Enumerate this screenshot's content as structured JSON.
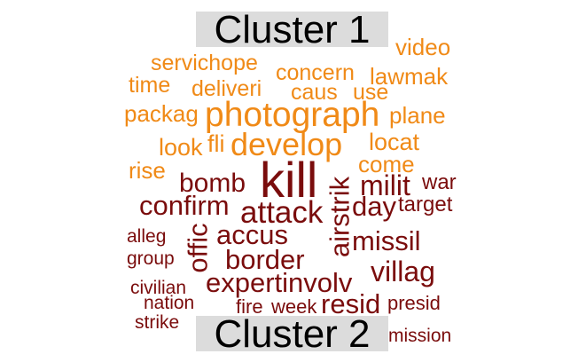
{
  "colors": {
    "cluster1": "#f08a17",
    "cluster2": "#7a0c0c",
    "label_bg": "#dcdcdc"
  },
  "labels": {
    "cluster1": "Cluster 1",
    "cluster2": "Cluster 2"
  },
  "cluster1_words": {
    "video": "video",
    "servichope": "servichope",
    "concern": "concern",
    "lawmak": "lawmak",
    "time": "time",
    "deliveri": "deliveri",
    "caus": "caus",
    "use": "use",
    "packag": "packag",
    "photograph": "photograph",
    "plane": "plane",
    "look": "look",
    "fli": "fli",
    "develop": "develop",
    "locat": "locat",
    "rise": "rise",
    "come": "come"
  },
  "cluster2_words": {
    "kill": "kill",
    "bomb": "bomb",
    "milit": "milit",
    "war": "war",
    "confirm": "confirm",
    "attack": "attack",
    "airstrik": "airstrik",
    "day": "day",
    "target": "target",
    "alleg": "alleg",
    "offic": "offic",
    "accus": "accus",
    "missil": "missil",
    "group": "group",
    "border": "border",
    "villag": "villag",
    "civilian": "civilian",
    "expertinvolv": "expertinvolv",
    "nation": "nation",
    "fire": "fire",
    "week": "week",
    "resid": "resid",
    "presid": "presid",
    "strike": "strike",
    "mission": "mission"
  }
}
